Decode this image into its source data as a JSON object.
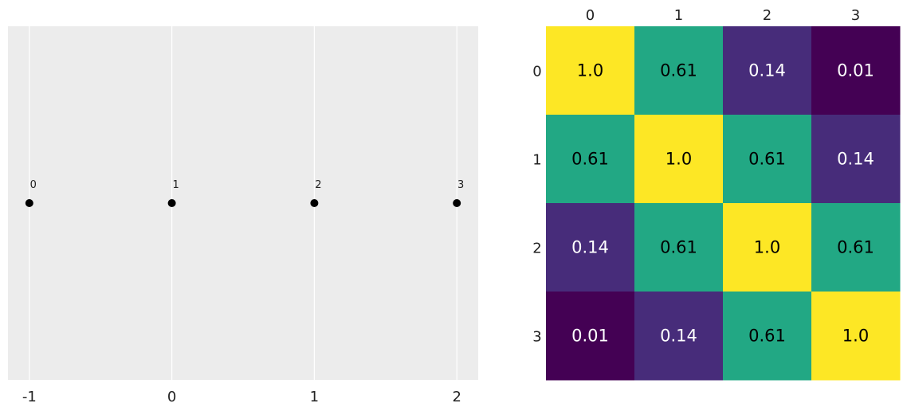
{
  "chart_data": [
    {
      "type": "scatter",
      "points": [
        {
          "x": -1,
          "y": 0,
          "label": "0"
        },
        {
          "x": 0,
          "y": 0,
          "label": "1"
        },
        {
          "x": 1,
          "y": 0,
          "label": "2"
        },
        {
          "x": 2,
          "y": 0,
          "label": "3"
        }
      ],
      "xticks": [
        "-1",
        "0",
        "1",
        "2"
      ],
      "xlim": [
        -1.15,
        2.15
      ],
      "ylim": [
        -1,
        1
      ],
      "grid": "vertical",
      "background": "#ececec",
      "marker_color": "#000000"
    },
    {
      "type": "heatmap",
      "row_labels": [
        "0",
        "1",
        "2",
        "3"
      ],
      "col_labels": [
        "0",
        "1",
        "2",
        "3"
      ],
      "values": [
        [
          1.0,
          0.61,
          0.14,
          0.01
        ],
        [
          0.61,
          1.0,
          0.61,
          0.14
        ],
        [
          0.14,
          0.61,
          1.0,
          0.61
        ],
        [
          0.01,
          0.14,
          0.61,
          1.0
        ]
      ],
      "cell_text": [
        [
          "1.0",
          "0.61",
          "0.14",
          "0.01"
        ],
        [
          "0.61",
          "1.0",
          "0.61",
          "0.14"
        ],
        [
          "0.14",
          "0.61",
          "1.0",
          "0.61"
        ],
        [
          "0.01",
          "0.14",
          "0.61",
          "1.0"
        ]
      ],
      "colormap": "viridis",
      "colors": {
        "0.01": "#440154",
        "0.14": "#472c7a",
        "0.61": "#22a884",
        "1.0": "#fde725"
      },
      "x_axis_position": "top"
    }
  ]
}
